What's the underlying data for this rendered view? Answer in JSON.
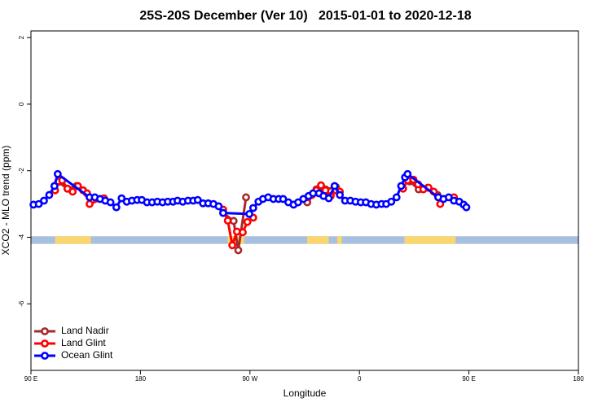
{
  "chart_data": {
    "type": "line",
    "title": "25S-20S December (Ver 10)   2015-01-01 to 2020-12-18",
    "x_label": "Longitude",
    "y_label": "XCO2 - MLO trend (ppm)",
    "xlim": [
      90,
      540
    ],
    "xticks": [
      {
        "value": 90,
        "label": "90 E"
      },
      180,
      {
        "value": 270,
        "label": "90 W"
      },
      {
        "value": 360,
        "label": "0"
      },
      {
        "value": 450,
        "label": "90 E"
      },
      {
        "value": 540,
        "label": "180"
      }
    ],
    "ylim": [
      -8,
      2.2
    ],
    "yticks": [
      -6,
      -4,
      -2,
      0,
      2
    ],
    "legend": "bottom-left",
    "land_mask": {
      "ylim": [
        -4.2,
        -3.97
      ],
      "ocean_color": "#a9bfe0",
      "land_color": "#fbd66e",
      "land": [
        [
          109.8,
          139.3
        ],
        [
          251.8,
          265.2
        ],
        [
          317,
          334.8
        ],
        [
          341.7,
          345.5
        ],
        [
          397,
          439
        ]
      ]
    },
    "series": [
      {
        "name": "Land Nadir",
        "color": "#a52a2a",
        "x": [
          112.5,
          120,
          127.5,
          null,
          248,
          256.6,
          260.4,
          266.8,
          null,
          317.1,
          324.6,
          332.1,
          340.7,
          null,
          401.2,
          408.7,
          416.2,
          424.2
        ],
        "values": [
          -2.34,
          -2.54,
          -2.46,
          null,
          -3.27,
          -3.51,
          -4.39,
          -2.8,
          null,
          -2.95,
          -2.56,
          -2.56,
          -2.49,
          null,
          -2.32,
          -2.56,
          -2.51,
          -2.73
        ]
      },
      {
        "name": "Land Glint",
        "color": "#ff0000",
        "x": [
          109.8,
          112.5,
          115.7,
          120,
          124.3,
          128.6,
          132.9,
          136.1,
          138.2,
          150,
          null,
          248,
          251.8,
          255.5,
          259.3,
          264.1,
          267.9,
          272.7,
          null,
          317.7,
          320.9,
          324.6,
          328.4,
          332.1,
          336.4,
          340.7,
          343.9,
          null,
          395.9,
          399.6,
          404.4,
          408.2,
          412.5,
          416.8,
          421.1,
          426.4,
          null,
          437.7
        ],
        "values": [
          -2.59,
          -2.32,
          -2.29,
          -2.54,
          -2.63,
          -2.46,
          -2.59,
          -2.68,
          -3.0,
          -2.83,
          null,
          -3.17,
          -3.5,
          -4.24,
          -3.83,
          -3.85,
          -3.54,
          -3.41,
          null,
          -2.8,
          -2.73,
          -2.59,
          -2.44,
          -2.59,
          -2.76,
          -2.59,
          -2.63,
          null,
          -2.54,
          -2.29,
          -2.27,
          -2.41,
          -2.56,
          -2.51,
          -2.63,
          -3.0,
          null,
          -2.8
        ]
      },
      {
        "name": "Ocean Glint",
        "color": "#0000ff",
        "x": [
          92.1,
          96.4,
          100.7,
          105,
          109.3,
          112,
          138.2,
          142.5,
          146.8,
          151.1,
          155.4,
          160.2,
          164.5,
          168.7,
          173,
          177.3,
          181.1,
          185.4,
          189.6,
          193.9,
          198.2,
          202.5,
          206.8,
          210.5,
          214.8,
          219.1,
          223.4,
          227.1,
          231.4,
          235.7,
          240,
          244.3,
          248,
          269.5,
          272.7,
          277,
          280.7,
          285,
          289.3,
          293.6,
          297.3,
          301.6,
          305.9,
          309.6,
          313.9,
          318.2,
          321.9,
          326.8,
          330.5,
          334.8,
          339.6,
          343.9,
          348.2,
          352.5,
          356.8,
          361.1,
          365.3,
          369.6,
          373.9,
          378.2,
          382,
          386.2,
          390.5,
          394.3,
          397.5,
          399.6,
          424.8,
          429.1,
          433.4,
          437.7,
          442,
          445.7,
          447.9
        ],
        "values": [
          -3.02,
          -3.0,
          -2.9,
          -2.73,
          -2.46,
          -2.1,
          -2.8,
          -2.8,
          -2.85,
          -2.9,
          -2.95,
          -3.1,
          -2.83,
          -2.93,
          -2.9,
          -2.88,
          -2.88,
          -2.95,
          -2.95,
          -2.93,
          -2.95,
          -2.93,
          -2.93,
          -2.9,
          -2.93,
          -2.9,
          -2.9,
          -2.88,
          -2.98,
          -2.98,
          -3.0,
          -3.07,
          -3.27,
          -3.3,
          -3.12,
          -2.93,
          -2.85,
          -2.8,
          -2.85,
          -2.85,
          -2.85,
          -2.95,
          -3.02,
          -2.95,
          -2.85,
          -2.76,
          -2.68,
          -2.68,
          -2.76,
          -2.83,
          -2.46,
          -2.73,
          -2.9,
          -2.9,
          -2.93,
          -2.95,
          -2.95,
          -3.0,
          -3.02,
          -3.0,
          -3.0,
          -2.93,
          -2.8,
          -2.46,
          -2.2,
          -2.1,
          -2.8,
          -2.85,
          -2.8,
          -2.9,
          -2.93,
          -3.02,
          -3.1
        ]
      }
    ]
  }
}
